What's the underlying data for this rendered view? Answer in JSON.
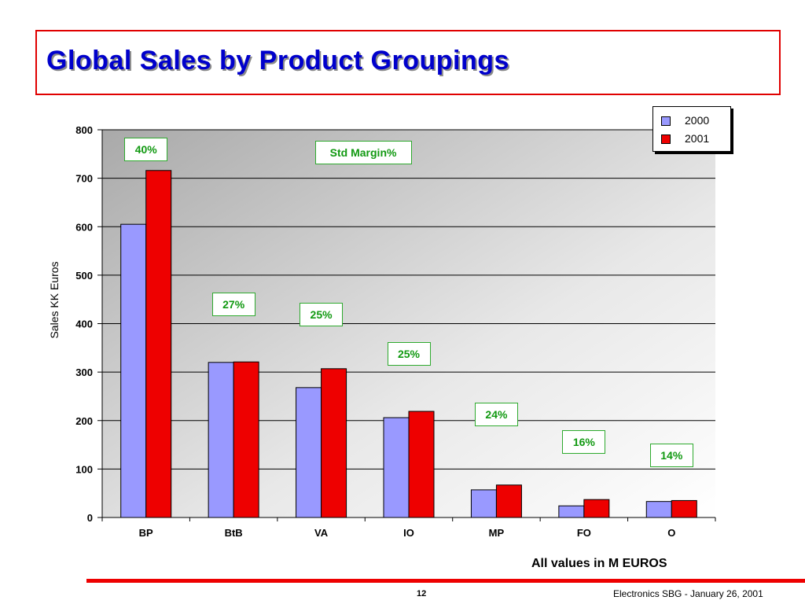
{
  "slide": {
    "title": "Global Sales by Product Groupings",
    "units_note": "All values in M EUROS",
    "page_number": "12",
    "footer": "Electronics SBG  - January 26, 2001"
  },
  "colors": {
    "accent_red": "#ee0000",
    "title_blue": "#0000cc",
    "series_2000": "#9999ff",
    "series_2001": "#ee0000",
    "margin_green": "#119911"
  },
  "chart_data": {
    "type": "bar",
    "title": "Global Sales by Product Groupings",
    "xlabel": "",
    "ylabel": "Sales KK Euros",
    "ylim": [
      0,
      800
    ],
    "yticks": [
      0,
      100,
      200,
      300,
      400,
      500,
      600,
      700,
      800
    ],
    "grid": true,
    "legend_position": "top-right",
    "categories": [
      "BP",
      "BtB",
      "VA",
      "IO",
      "MP",
      "FO",
      "O"
    ],
    "series": [
      {
        "name": "2000",
        "color": "#9999ff",
        "values": [
          605,
          320,
          268,
          206,
          57,
          24,
          33
        ]
      },
      {
        "name": "2001",
        "color": "#ee0000",
        "values": [
          716,
          321,
          307,
          219,
          67,
          37,
          35
        ]
      }
    ],
    "annotation_label": "Std Margin%",
    "std_margin": [
      "40%",
      "27%",
      "25%",
      "25%",
      "24%",
      "16%",
      "14%"
    ]
  }
}
